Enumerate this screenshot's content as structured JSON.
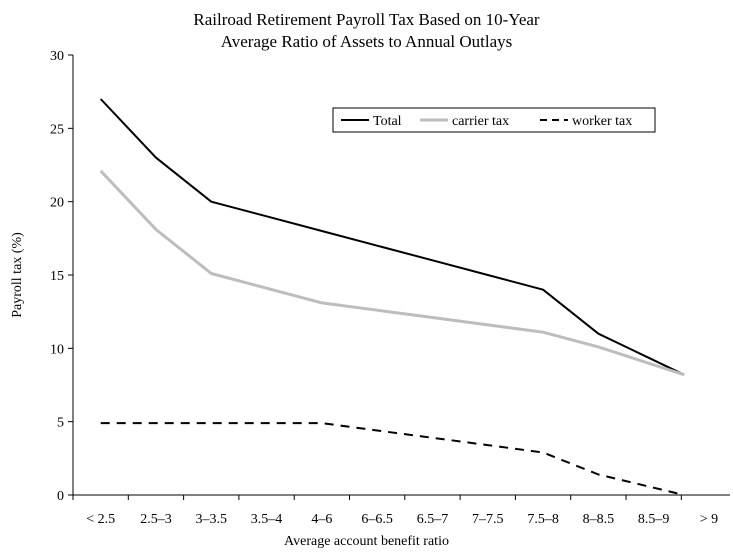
{
  "chart_data": {
    "type": "line",
    "title": "Railroad Retirement Payroll Tax Based on 10-Year",
    "subtitle": "Average Ratio of Assets to Annual Outlays",
    "xlabel": "Average account benefit ratio",
    "ylabel": "Payroll tax (%)",
    "ylim": [
      0,
      30
    ],
    "yticks": [
      0,
      5,
      10,
      15,
      20,
      25,
      30
    ],
    "grid": false,
    "legend_position": "top-right",
    "categories": [
      "< 2.5",
      "2.5–3",
      "3–3.5",
      "3.5–4",
      "4–6",
      "6–6.5",
      "6.5–7",
      "7–7.5",
      "7.5–8",
      "8–8.5",
      "8.5–9",
      "> 9"
    ],
    "series": [
      {
        "name": "Total",
        "color": "#000000",
        "style": "solid",
        "values": [
          27,
          23,
          20,
          19,
          18,
          17,
          16,
          15,
          14,
          11,
          8.2,
          null
        ],
        "x_end": 10.55
      },
      {
        "name": "carrier tax",
        "color": "#bdbdbd",
        "style": "solid",
        "values": [
          22.1,
          18.1,
          15.1,
          14.1,
          13.1,
          12.6,
          12.1,
          11.6,
          11.1,
          10.1,
          8.2,
          null
        ],
        "x_end": 10.55
      },
      {
        "name": "worker tax",
        "color": "#000000",
        "style": "dashed",
        "values": [
          4.9,
          4.9,
          4.9,
          4.9,
          4.9,
          4.4,
          3.9,
          3.4,
          2.9,
          1.4,
          0,
          null
        ],
        "x_end": 10.55
      }
    ]
  }
}
